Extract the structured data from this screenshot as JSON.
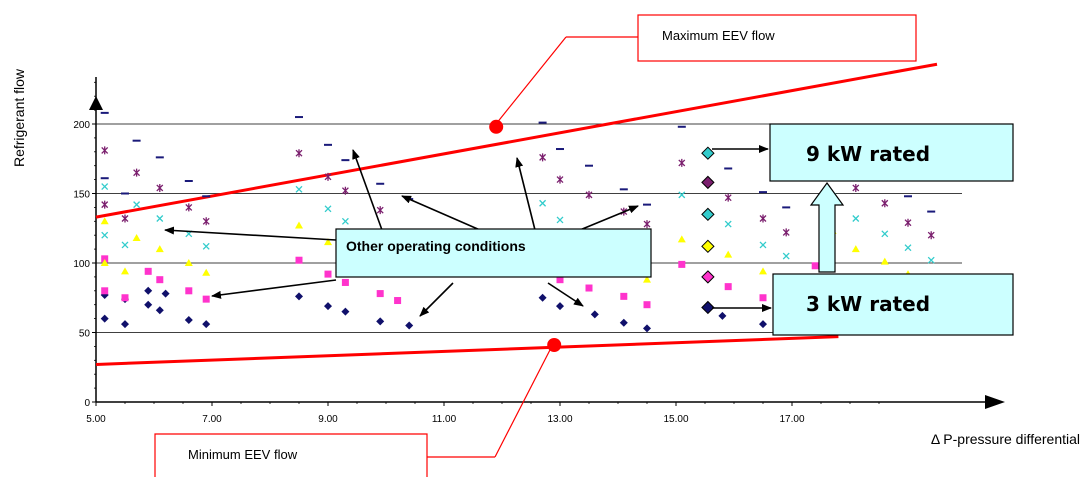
{
  "chart_data": {
    "type": "scatter",
    "title": "",
    "xlabel": "Δ P-pressure differential",
    "ylabel": "Refrigerant flow",
    "xlim": [
      5.0,
      19.7
    ],
    "ylim": [
      0,
      235
    ],
    "x_ticks": [
      "5.00",
      "7.00",
      "9.00",
      "11.00",
      "13.00",
      "15.00",
      "17.00"
    ],
    "y_ticks": [
      "0",
      "50",
      "100",
      "150",
      "200"
    ],
    "grid": "horizontal",
    "colors": {
      "dark_blue": "#10106b",
      "magenta": "#ff33cc",
      "yellow": "#ffff00",
      "cyan": "#33cccc",
      "purple": "#7b1f6e",
      "navy_dash": "#1a1a7a",
      "limit_line": "#ff0000",
      "rated_box": "#ccffff",
      "rated_arrow": "#cfffff"
    },
    "series": [
      {
        "marker": "diamond",
        "color": "#10106b",
        "points": [
          [
            5.15,
            60
          ],
          [
            5.5,
            56
          ],
          [
            5.9,
            70
          ],
          [
            6.1,
            66
          ],
          [
            6.6,
            59
          ],
          [
            6.9,
            56
          ],
          [
            8.5,
            76
          ],
          [
            9.0,
            69
          ],
          [
            9.3,
            65
          ],
          [
            9.9,
            58
          ],
          [
            10.4,
            55
          ],
          [
            12.7,
            75
          ],
          [
            13.0,
            69
          ],
          [
            13.6,
            63
          ],
          [
            14.1,
            57
          ],
          [
            14.5,
            53
          ],
          [
            15.8,
            62
          ],
          [
            16.5,
            56
          ]
        ]
      },
      {
        "marker": "diamond",
        "color": "#10106b",
        "points": [
          [
            5.15,
            77
          ],
          [
            5.5,
            74
          ],
          [
            5.9,
            80
          ],
          [
            6.2,
            78
          ]
        ]
      },
      {
        "marker": "square",
        "color": "#ff33cc",
        "points": [
          [
            5.15,
            103
          ],
          [
            5.15,
            80
          ],
          [
            5.5,
            75
          ],
          [
            5.9,
            94
          ],
          [
            6.1,
            88
          ],
          [
            6.6,
            80
          ],
          [
            6.9,
            74
          ],
          [
            8.5,
            102
          ],
          [
            9.0,
            92
          ],
          [
            9.3,
            86
          ],
          [
            9.9,
            78
          ],
          [
            10.2,
            73
          ],
          [
            12.7,
            95
          ],
          [
            13.0,
            88
          ],
          [
            13.5,
            82
          ],
          [
            14.1,
            76
          ],
          [
            14.5,
            70
          ],
          [
            15.1,
            99
          ],
          [
            15.9,
            83
          ],
          [
            16.5,
            75
          ],
          [
            17.4,
            98
          ]
        ]
      },
      {
        "marker": "triangle",
        "color": "#ffff00",
        "points": [
          [
            5.15,
            130
          ],
          [
            5.15,
            100
          ],
          [
            5.5,
            94
          ],
          [
            5.7,
            118
          ],
          [
            6.1,
            110
          ],
          [
            6.6,
            100
          ],
          [
            6.9,
            93
          ],
          [
            8.5,
            127
          ],
          [
            9.0,
            115
          ],
          [
            12.7,
            120
          ],
          [
            13.0,
            110
          ],
          [
            13.5,
            102
          ],
          [
            14.1,
            94
          ],
          [
            14.5,
            88
          ],
          [
            15.1,
            117
          ],
          [
            15.9,
            106
          ],
          [
            16.5,
            94
          ],
          [
            17.1,
            88
          ],
          [
            17.7,
            123
          ],
          [
            18.1,
            110
          ],
          [
            18.6,
            101
          ],
          [
            19.0,
            92
          ]
        ]
      },
      {
        "marker": "x",
        "color": "#33cccc",
        "points": [
          [
            5.15,
            155
          ],
          [
            5.15,
            120
          ],
          [
            5.5,
            113
          ],
          [
            5.7,
            142
          ],
          [
            6.1,
            132
          ],
          [
            6.6,
            121
          ],
          [
            6.9,
            112
          ],
          [
            8.5,
            153
          ],
          [
            9.0,
            139
          ],
          [
            9.3,
            130
          ],
          [
            12.7,
            143
          ],
          [
            13.0,
            131
          ],
          [
            13.5,
            122
          ],
          [
            14.1,
            113
          ],
          [
            14.5,
            106
          ],
          [
            15.1,
            149
          ],
          [
            15.9,
            128
          ],
          [
            16.5,
            113
          ],
          [
            16.9,
            105
          ],
          [
            17.7,
            148
          ],
          [
            18.1,
            132
          ],
          [
            18.6,
            121
          ],
          [
            19.0,
            111
          ],
          [
            19.4,
            102
          ]
        ]
      },
      {
        "marker": "asterisk",
        "color": "#7b1f6e",
        "points": [
          [
            5.15,
            181
          ],
          [
            5.15,
            142
          ],
          [
            5.5,
            132
          ],
          [
            5.7,
            165
          ],
          [
            6.1,
            154
          ],
          [
            6.6,
            140
          ],
          [
            6.9,
            130
          ],
          [
            8.5,
            179
          ],
          [
            9.0,
            162
          ],
          [
            9.3,
            152
          ],
          [
            9.9,
            138
          ],
          [
            12.7,
            176
          ],
          [
            13.0,
            160
          ],
          [
            13.5,
            149
          ],
          [
            14.1,
            137
          ],
          [
            14.5,
            128
          ],
          [
            15.1,
            172
          ],
          [
            15.9,
            147
          ],
          [
            16.5,
            132
          ],
          [
            16.9,
            122
          ],
          [
            17.7,
            170
          ],
          [
            18.1,
            154
          ],
          [
            18.6,
            143
          ],
          [
            19.0,
            129
          ],
          [
            19.4,
            120
          ]
        ]
      },
      {
        "marker": "dash",
        "color": "#1a1a7a",
        "points": [
          [
            5.15,
            208
          ],
          [
            5.15,
            161
          ],
          [
            5.5,
            150
          ],
          [
            5.7,
            188
          ],
          [
            6.1,
            176
          ],
          [
            6.6,
            159
          ],
          [
            6.9,
            148
          ],
          [
            8.5,
            205
          ],
          [
            9.0,
            185
          ],
          [
            9.3,
            174
          ],
          [
            9.9,
            157
          ],
          [
            10.4,
            146
          ],
          [
            12.7,
            201
          ],
          [
            13.0,
            182
          ],
          [
            13.5,
            170
          ],
          [
            14.1,
            153
          ],
          [
            14.5,
            142
          ],
          [
            15.1,
            198
          ],
          [
            15.9,
            168
          ],
          [
            16.5,
            151
          ],
          [
            16.9,
            140
          ],
          [
            17.7,
            190
          ],
          [
            18.1,
            176
          ],
          [
            18.6,
            162
          ],
          [
            19.0,
            148
          ],
          [
            19.4,
            137
          ]
        ]
      }
    ],
    "highlight_points": [
      {
        "x": 15.55,
        "y": 179,
        "color": "#33cccc"
      },
      {
        "x": 15.55,
        "y": 158,
        "color": "#7b1f6e"
      },
      {
        "x": 15.55,
        "y": 135,
        "color": "#33cccc"
      },
      {
        "x": 15.55,
        "y": 112,
        "color": "#ffff00"
      },
      {
        "x": 15.55,
        "y": 90,
        "color": "#ff33cc"
      },
      {
        "x": 15.55,
        "y": 68,
        "color": "#10106b"
      }
    ],
    "max_line": {
      "start": [
        5.0,
        133
      ],
      "end": [
        19.5,
        243
      ]
    },
    "min_line": {
      "start": [
        5.0,
        27
      ],
      "end": [
        17.8,
        47
      ]
    },
    "max_point": {
      "x": 11.9,
      "y": 198
    },
    "min_point": {
      "x": 12.9,
      "y": 41
    }
  },
  "annotations": {
    "max_label": "Maximum EEV flow",
    "min_label": "Minimum EEV flow",
    "other_label": "Other operating conditions",
    "rated_9kw": "9 kW rated",
    "rated_3kw": "3 kW rated"
  }
}
